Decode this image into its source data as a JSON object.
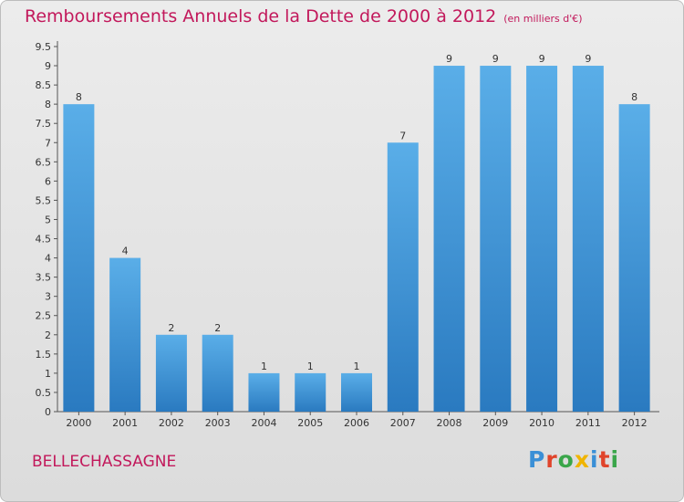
{
  "header": {
    "title": "Remboursements Annuels de la Dette de 2000 à 2012",
    "unit": "(en milliers d'€)"
  },
  "footer": {
    "commune": "BELLECHASSAGNE",
    "brand_letters": [
      {
        "ch": "P",
        "color": "#3a8fd6"
      },
      {
        "ch": "r",
        "color": "#e0442b"
      },
      {
        "ch": "o",
        "color": "#3aa64a"
      },
      {
        "ch": "x",
        "color": "#f0b400"
      },
      {
        "ch": "i",
        "color": "#3a8fd6"
      },
      {
        "ch": "t",
        "color": "#e0442b"
      },
      {
        "ch": "i",
        "color": "#3aa64a"
      }
    ]
  },
  "colors": {
    "accent": "#c2185b",
    "bar_light": "#5aaee8",
    "bar_dark": "#2a7ac0"
  },
  "chart_data": {
    "type": "bar",
    "title": "Remboursements Annuels de la Dette de 2000 à 2012",
    "xlabel": "",
    "ylabel": "",
    "categories": [
      "2000",
      "2001",
      "2002",
      "2003",
      "2004",
      "2005",
      "2006",
      "2007",
      "2008",
      "2009",
      "2010",
      "2011",
      "2012"
    ],
    "values": [
      8,
      4,
      2,
      2,
      1,
      1,
      1,
      7,
      9,
      9,
      9,
      9,
      8
    ],
    "ylim": [
      0,
      9.5
    ],
    "yticks": [
      "0",
      "0.5",
      "1",
      "1.5",
      "2",
      "2.5",
      "3",
      "3.5",
      "4",
      "4.5",
      "5",
      "5.5",
      "6",
      "6.5",
      "7",
      "7.5",
      "8",
      "8.5",
      "9",
      "9.5"
    ],
    "grid": false,
    "data_labels": true
  }
}
